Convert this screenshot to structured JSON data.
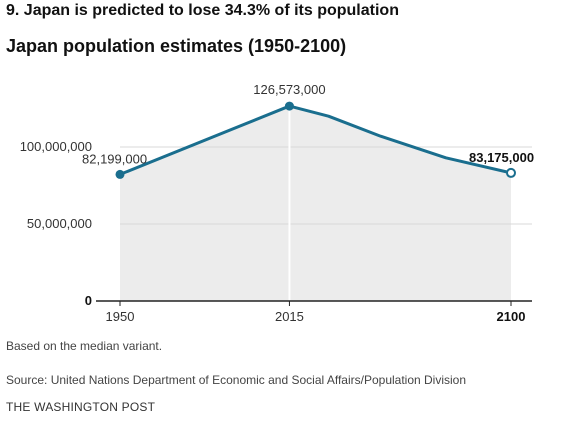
{
  "headline": "9. Japan is predicted to lose 34.3% of its population",
  "footer": {
    "note": "Based on the median variant.",
    "source": "Source: United Nations Department of Economic and Social Affairs/Population Division",
    "publisher": "THE WASHINGTON POST"
  },
  "colors": {
    "line": "#1a6e8e",
    "area": "#ececec",
    "grid": "#d8d8d8",
    "axis": "#222222"
  },
  "chart_data": {
    "type": "area",
    "title": "Japan population estimates (1950-2100)",
    "xlabel": "",
    "ylabel": "",
    "xlim": [
      1950,
      2100
    ],
    "ylim": [
      0,
      150000000
    ],
    "grid": true,
    "x_ticks": [
      {
        "value": 1950,
        "label": "1950",
        "bold": false
      },
      {
        "value": 2015,
        "label": "2015",
        "bold": false
      },
      {
        "value": 2100,
        "label": "2100",
        "bold": true
      }
    ],
    "y_ticks": [
      {
        "value": 0,
        "label": "0",
        "bold": true
      },
      {
        "value": 50000000,
        "label": "50,000,000",
        "bold": false
      },
      {
        "value": 100000000,
        "label": "100,000,000",
        "bold": false
      }
    ],
    "series": [
      {
        "x": [
          1950,
          2015,
          2030,
          2050,
          2075,
          2100
        ],
        "y": [
          82199000,
          126573000,
          120000000,
          107000000,
          93000000,
          83175000
        ]
      }
    ],
    "annotations": [
      {
        "x": 1950,
        "y": 82199000,
        "text": "82,199,000",
        "marker": "filled",
        "bold": false
      },
      {
        "x": 2015,
        "y": 126573000,
        "text": "126,573,000",
        "marker": "filled",
        "bold": false
      },
      {
        "x": 2100,
        "y": 83175000,
        "text": "83,175,000",
        "marker": "hollow",
        "bold": true
      }
    ],
    "reference_line_x": 2015
  }
}
